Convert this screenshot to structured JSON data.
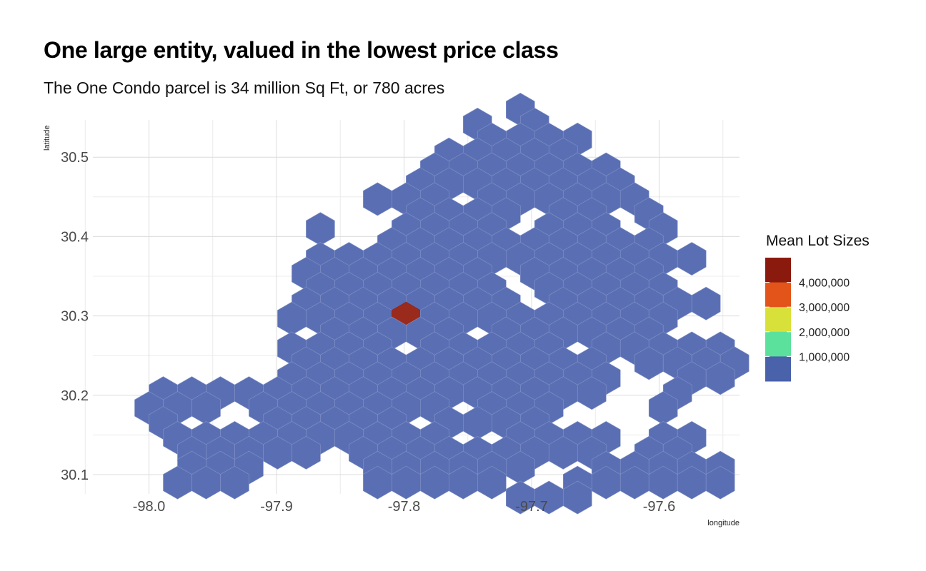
{
  "chart_data": {
    "type": "hexbin",
    "title": "One large entity, valued in the lowest price class",
    "subtitle": "The One Condo parcel is 34 million Sq Ft, or 780 acres",
    "xlabel": "longitude",
    "ylabel": "latitude",
    "xlim": [
      -98.05,
      -97.55
    ],
    "ylim": [
      30.08,
      30.55
    ],
    "x_ticks": [
      -98.0,
      -97.9,
      -97.8,
      -97.7,
      -97.6
    ],
    "x_tick_labels": [
      "-98.0",
      "-97.9",
      "-97.8",
      "-97.7",
      "-97.6"
    ],
    "y_ticks": [
      30.1,
      30.2,
      30.3,
      30.4,
      30.5
    ],
    "y_tick_labels": [
      "30.1",
      "30.2",
      "30.3",
      "30.4",
      "30.5"
    ],
    "grid": true,
    "hex_grid": {
      "x0": -98.0,
      "dx": 0.0224,
      "y0": 30.09,
      "dy": 0.0188
    },
    "bins": [
      {
        "row": 25,
        "cols": [
          13
        ]
      },
      {
        "row": 24,
        "cols": [
          11.5,
          13.5
        ]
      },
      {
        "row": 23,
        "cols": [
          12,
          13,
          14,
          15
        ]
      },
      {
        "row": 22,
        "cols": [
          10.5,
          11.5,
          12.5,
          13.5,
          14.5
        ]
      },
      {
        "row": 21,
        "cols": [
          10,
          11,
          12,
          13,
          14,
          15,
          16
        ]
      },
      {
        "row": 20,
        "cols": [
          9.5,
          10.5,
          11.5,
          12.5,
          13.5,
          14.5,
          15.5,
          16.5
        ]
      },
      {
        "row": 19,
        "cols": [
          8,
          9,
          10,
          12,
          13,
          14,
          15,
          16,
          17
        ]
      },
      {
        "row": 18,
        "cols": [
          9.5,
          10.5,
          11.5,
          12.5,
          14.5,
          15.5,
          17.5
        ]
      },
      {
        "row": 17,
        "cols": [
          6,
          9,
          10,
          11,
          12,
          14,
          15,
          16,
          18
        ]
      },
      {
        "row": 16,
        "cols": [
          8.5,
          9.5,
          10.5,
          11.5,
          12.5,
          13.5,
          14.5,
          15.5,
          16.5,
          17.5
        ]
      },
      {
        "row": 15,
        "cols": [
          6,
          7,
          8,
          9,
          10,
          11,
          12,
          13,
          14,
          15,
          16,
          17,
          18,
          19
        ]
      },
      {
        "row": 14,
        "cols": [
          5.5,
          6.5,
          7.5,
          8.5,
          9.5,
          10.5,
          11.5,
          13.5,
          14.5,
          15.5,
          16.5,
          17.5
        ]
      },
      {
        "row": 13,
        "cols": [
          6,
          7,
          8,
          9,
          10,
          11,
          12,
          14,
          15,
          16,
          17,
          18
        ]
      },
      {
        "row": 12,
        "cols": [
          5.5,
          6.5,
          7.5,
          8.5,
          9.5,
          10.5,
          11.5,
          12.5,
          14.5,
          15.5,
          16.5,
          17.5,
          18.5,
          19.5
        ]
      },
      {
        "row": 11,
        "cols": [
          5,
          6,
          7,
          8,
          9,
          10,
          11,
          12,
          13,
          14,
          15,
          16,
          17,
          18
        ]
      },
      {
        "row": 10,
        "cols": [
          6.5,
          7.5,
          8.5,
          9.5,
          10.5,
          12.5,
          13.5,
          14.5,
          15.5,
          16.5,
          17.5
        ]
      },
      {
        "row": 9,
        "cols": [
          5,
          6,
          7,
          8,
          10,
          11,
          12,
          13,
          14,
          16,
          17,
          18,
          19,
          20
        ]
      },
      {
        "row": 8,
        "cols": [
          5.5,
          6.5,
          7.5,
          8.5,
          9.5,
          10.5,
          11.5,
          12.5,
          13.5,
          14.5,
          15.5,
          17.5,
          18.5,
          19.5,
          20.5
        ]
      },
      {
        "row": 7,
        "cols": [
          5,
          6,
          7,
          8,
          9,
          10,
          11,
          12,
          13,
          14,
          15,
          16,
          19,
          20
        ]
      },
      {
        "row": 6,
        "cols": [
          0.5,
          1.5,
          2.5,
          3.5,
          4.5,
          5.5,
          6.5,
          7.5,
          8.5,
          9.5,
          10.5,
          11.5,
          12.5,
          13.5,
          14.5,
          15.5,
          18.5
        ]
      },
      {
        "row": 5,
        "cols": [
          0,
          1,
          2,
          4,
          5,
          6,
          7,
          8,
          9,
          10,
          12,
          13,
          14,
          18
        ]
      },
      {
        "row": 4,
        "cols": [
          0.5,
          4.5,
          5.5,
          6.5,
          7.5,
          8.5,
          10.5,
          11.5,
          12.5,
          13.5
        ]
      },
      {
        "row": 3,
        "cols": [
          1,
          2,
          3,
          4,
          5,
          6,
          7,
          8,
          9,
          10,
          13,
          14,
          15,
          16,
          18,
          19
        ]
      },
      {
        "row": 2,
        "cols": [
          1.5,
          2.5,
          3.5,
          4.5,
          5.5,
          7.5,
          8.5,
          9.5,
          10.5,
          11.5,
          12.5,
          13.5,
          14.5,
          15.5,
          17.5,
          18.5
        ]
      },
      {
        "row": 1,
        "cols": [
          1.5,
          2.5,
          3.5,
          8,
          9,
          10,
          11,
          12,
          13,
          16,
          17,
          18,
          19,
          20
        ]
      },
      {
        "row": 0,
        "cols": [
          1,
          2,
          3,
          8,
          9,
          10,
          11,
          12,
          15,
          16,
          17,
          18,
          19,
          20
        ]
      },
      {
        "row": -1,
        "cols": [
          13,
          14,
          15
        ]
      }
    ],
    "bins_value": 1000000,
    "highlight_bin": {
      "row": 11,
      "col": 9,
      "value": 4200000
    },
    "legend": {
      "title": "Mean Lot Sizes",
      "position": "right",
      "labels": [
        "4,000,000",
        "3,000,000",
        "2,000,000",
        "1,000,000"
      ],
      "colors": [
        "#8b1a0e",
        "#e3541a",
        "#d8e13a",
        "#5ce19c",
        "#4a62aa"
      ]
    },
    "hex_fill": "#5a6fb3",
    "highlight_fill": "#9a2a1c"
  }
}
